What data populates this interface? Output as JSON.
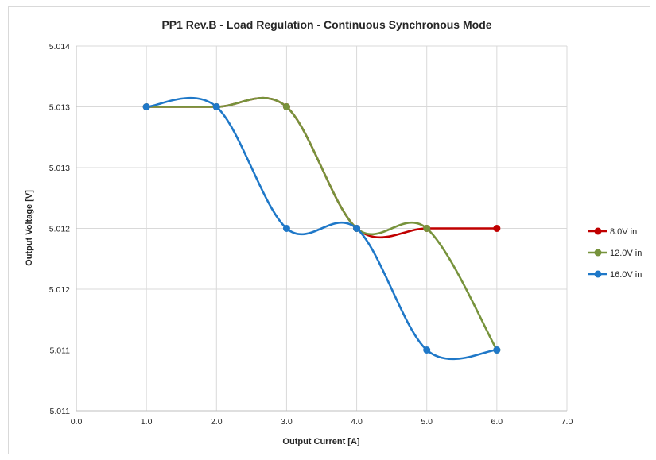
{
  "chart_data": {
    "type": "line",
    "title": "PP1 Rev.B - Load Regulation - Continuous Synchronous Mode",
    "xlabel": "Output Current [A]",
    "ylabel": "Output Voltage [V]",
    "xlim": [
      0,
      7
    ],
    "ylim": [
      5.0105,
      5.0135
    ],
    "x_ticks": [
      0,
      1,
      2,
      3,
      4,
      5,
      6,
      7
    ],
    "x_tick_labels": [
      "0.0",
      "1.0",
      "2.0",
      "3.0",
      "4.0",
      "5.0",
      "6.0",
      "7.0"
    ],
    "y_ticks": [
      5.0105,
      5.011,
      5.0115,
      5.012,
      5.0125,
      5.013,
      5.0135
    ],
    "y_tick_labels": [
      "5.011",
      "5.011",
      "5.012",
      "5.012",
      "5.013",
      "5.013",
      "5.014"
    ],
    "grid": true,
    "smoothed": true,
    "legend_position": "right",
    "series": [
      {
        "name": "8.0V in",
        "color": "#c00000",
        "x": [
          1,
          2,
          3,
          4,
          5,
          6
        ],
        "y": [
          5.013,
          5.013,
          5.013,
          5.012,
          5.012,
          5.012
        ]
      },
      {
        "name": "12.0V in",
        "color": "#77933c",
        "x": [
          1,
          2,
          3,
          4,
          5,
          6
        ],
        "y": [
          5.013,
          5.013,
          5.013,
          5.012,
          5.012,
          5.011
        ]
      },
      {
        "name": "16.0V in",
        "color": "#1f78c8",
        "x": [
          1,
          2,
          3,
          4,
          5,
          6
        ],
        "y": [
          5.013,
          5.013,
          5.012,
          5.012,
          5.011,
          5.011
        ]
      }
    ]
  }
}
